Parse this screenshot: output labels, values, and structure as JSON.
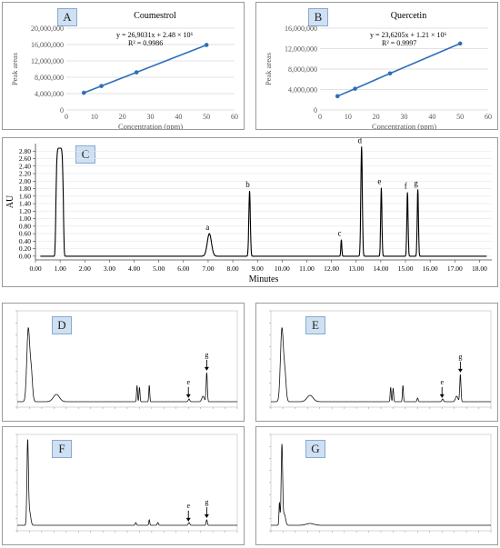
{
  "panels": {
    "A": "A",
    "B": "B",
    "C": "C",
    "D": "D",
    "E": "E",
    "F": "F",
    "G": "G"
  },
  "chart_data": [
    {
      "id": "A",
      "type": "scatter",
      "title": "Coumestrol",
      "equation": "y = 26,9031x + 2.48 × 10⁶",
      "r2": "R² = 0.9986",
      "xlabel": "Concentration (ppm)",
      "ylabel": "Peak areas",
      "xlim": [
        0,
        60
      ],
      "ylim": [
        0,
        20000000
      ],
      "x_ticks": [
        "0",
        "10",
        "20",
        "30",
        "40",
        "50",
        "60"
      ],
      "y_ticks": [
        "0",
        "4,000,000",
        "8,000,000",
        "12,000,000",
        "16,000,000",
        "20,000,000"
      ],
      "x": [
        6.25,
        12.5,
        25,
        50
      ],
      "y": [
        4200000,
        5850000,
        9200000,
        15900000
      ],
      "color": "#2e6fba"
    },
    {
      "id": "B",
      "type": "scatter",
      "title": "Quercetin",
      "equation": "y = 23,6205x + 1.21 × 10⁶",
      "r2": "R² = 0.9997",
      "xlabel": "Concentration (ppm)",
      "ylabel": "Peak areas",
      "xlim": [
        0,
        60
      ],
      "ylim": [
        0,
        16000000
      ],
      "x_ticks": [
        "0",
        "10",
        "20",
        "30",
        "40",
        "50",
        "60"
      ],
      "y_ticks": [
        "0",
        "4,000,000",
        "8,000,000",
        "12,000,000",
        "16,000,000"
      ],
      "x": [
        6.25,
        12.5,
        25,
        50
      ],
      "y": [
        2700000,
        4150000,
        7150000,
        13000000
      ],
      "color": "#2e6fba"
    },
    {
      "id": "C",
      "type": "line",
      "xlabel": "Minutes",
      "ylabel": "AU",
      "xlim": [
        0,
        18.5
      ],
      "ylim": [
        -0.1,
        3.0
      ],
      "x_ticks": [
        "0.00",
        "1.00",
        "2.00",
        "3.00",
        "4.00",
        "5.00",
        "6.00",
        "7.00",
        "8.00",
        "9.00",
        "10.00",
        "11.00",
        "12.00",
        "13.00",
        "14.00",
        "15.00",
        "16.00",
        "17.00",
        "18.00"
      ],
      "y_ticks": [
        "0.00",
        "0.20",
        "0.40",
        "0.60",
        "0.80",
        "1.00",
        "1.20",
        "1.40",
        "1.60",
        "1.80",
        "2.00",
        "2.20",
        "2.40",
        "2.60",
        "2.80"
      ],
      "peaks": [
        {
          "label": "",
          "rt": 0.98,
          "height": 2.88,
          "width": 0.16
        },
        {
          "label": "a",
          "rt": 7.05,
          "height": 0.6,
          "width": 0.17
        },
        {
          "label": "b",
          "rt": 8.68,
          "height": 1.74,
          "width": 0.06
        },
        {
          "label": "c",
          "rt": 12.4,
          "height": 0.44,
          "width": 0.04
        },
        {
          "label": "d",
          "rt": 13.22,
          "height": 2.92,
          "width": 0.06
        },
        {
          "label": "e",
          "rt": 14.02,
          "height": 1.82,
          "width": 0.05
        },
        {
          "label": "f",
          "rt": 15.08,
          "height": 1.7,
          "width": 0.05
        },
        {
          "label": "g",
          "rt": 15.5,
          "height": 1.78,
          "width": 0.05
        }
      ],
      "color": "#000000"
    }
  ],
  "small_charts": {
    "D": {
      "labels": [
        "e",
        "g"
      ]
    },
    "E": {
      "labels": [
        "e",
        "g"
      ]
    },
    "F": {
      "labels": [
        "e",
        "g"
      ]
    },
    "G": {
      "labels": []
    }
  }
}
